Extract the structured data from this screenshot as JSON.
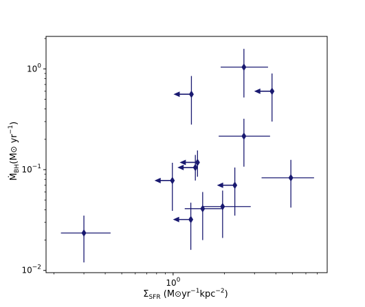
{
  "chart_data": {
    "type": "scatter",
    "x_scale": "log",
    "y_scale": "log",
    "xlim": [
      0.18,
      8.0
    ],
    "ylim": [
      0.0095,
      2.1
    ],
    "grid": false,
    "color": "#191970",
    "xlabel": "Σ_SFR (M⊙yr⁻¹kpc⁻²)",
    "ylabel": "Ṁ_BH(M⊙ yr⁻¹)",
    "xticks": [
      {
        "value": 1.0,
        "label": "10^0"
      }
    ],
    "yticks": [
      {
        "value": 1.0,
        "label": "10^0"
      },
      {
        "value": 0.1,
        "label": "10^-1"
      },
      {
        "value": 0.01,
        "label": "10^-2"
      }
    ],
    "points": [
      {
        "x": 0.3,
        "y": 0.0235,
        "x_err": [
          0.22,
          0.43
        ],
        "y_err": [
          0.012,
          0.035
        ],
        "upper_limit_x": false
      },
      {
        "x": 0.99,
        "y": 0.078,
        "x_err": null,
        "y_err": [
          0.039,
          0.117
        ],
        "upper_limit_x": true
      },
      {
        "x": 1.28,
        "y": 0.56,
        "x_err": null,
        "y_err": [
          0.28,
          0.85
        ],
        "upper_limit_x": true
      },
      {
        "x": 1.39,
        "y": 0.118,
        "x_err": null,
        "y_err": [
          0.085,
          0.155
        ],
        "upper_limit_x": true
      },
      {
        "x": 1.35,
        "y": 0.105,
        "x_err": null,
        "y_err": [
          0.078,
          0.14
        ],
        "upper_limit_x": true
      },
      {
        "x": 1.27,
        "y": 0.032,
        "x_err": null,
        "y_err": [
          0.016,
          0.047
        ],
        "upper_limit_x": true
      },
      {
        "x": 1.49,
        "y": 0.041,
        "x_err": [
          1.17,
          1.94
        ],
        "y_err": [
          0.02,
          0.06
        ],
        "upper_limit_x": false
      },
      {
        "x": 1.95,
        "y": 0.043,
        "x_err": [
          1.5,
          2.85
        ],
        "y_err": [
          0.021,
          0.062
        ],
        "upper_limit_x": false
      },
      {
        "x": 2.3,
        "y": 0.07,
        "x_err": null,
        "y_err": [
          0.035,
          0.105
        ],
        "upper_limit_x": true
      },
      {
        "x": 2.6,
        "y": 1.04,
        "x_err": [
          1.9,
          3.6
        ],
        "y_err": [
          0.52,
          1.58
        ],
        "upper_limit_x": false
      },
      {
        "x": 2.6,
        "y": 0.215,
        "x_err": [
          1.85,
          3.7
        ],
        "y_err": [
          0.107,
          0.32
        ],
        "upper_limit_x": false
      },
      {
        "x": 3.8,
        "y": 0.6,
        "x_err": null,
        "y_err": [
          0.3,
          0.9
        ],
        "upper_limit_x": true
      },
      {
        "x": 4.9,
        "y": 0.083,
        "x_err": [
          3.3,
          6.7
        ],
        "y_err": [
          0.042,
          0.125
        ],
        "upper_limit_x": false
      }
    ]
  }
}
